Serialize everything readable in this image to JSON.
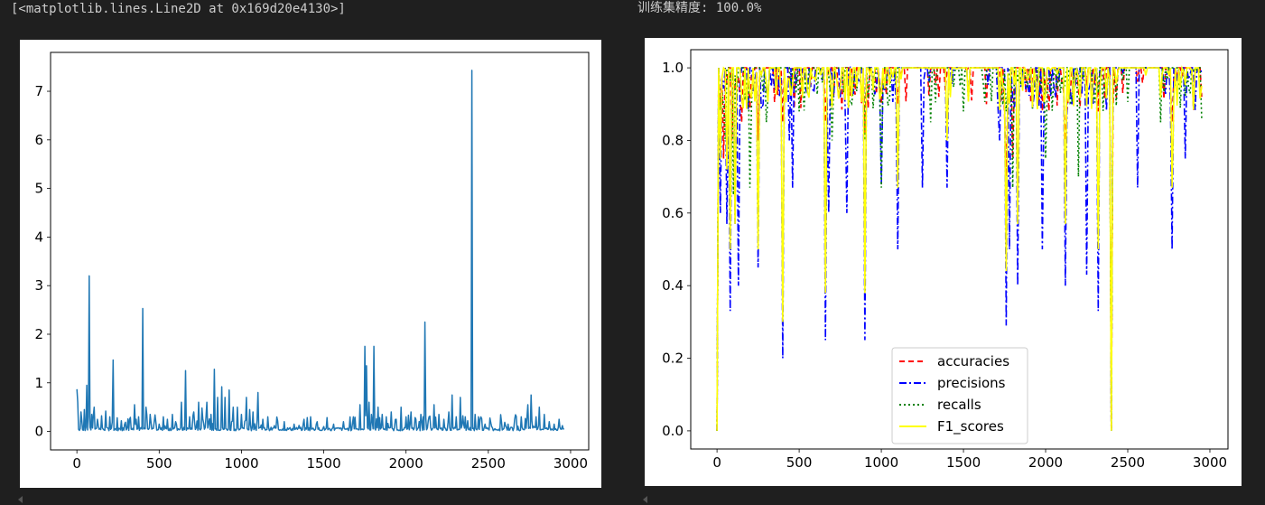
{
  "outputs": {
    "left_text": "[<matplotlib.lines.Line2D at 0x169d20e4130>]",
    "right_text": "训练集精度: 100.0%"
  },
  "chart_data": [
    {
      "type": "line",
      "xlim": [
        -160,
        3110
      ],
      "ylim": [
        -0.38,
        7.8
      ],
      "xticks": [
        0,
        500,
        1000,
        1500,
        2000,
        2500,
        3000
      ],
      "yticks": [
        0,
        1,
        2,
        3,
        4,
        5,
        6,
        7
      ],
      "color": "#1f77b4",
      "grid": false,
      "baseline": 0.05,
      "spikes": [
        [
          0,
          0.87
        ],
        [
          5,
          0.6
        ],
        [
          25,
          0.4
        ],
        [
          45,
          0.45
        ],
        [
          60,
          0.95
        ],
        [
          70,
          0.3
        ],
        [
          75,
          3.2
        ],
        [
          90,
          0.35
        ],
        [
          105,
          0.5
        ],
        [
          125,
          0.25
        ],
        [
          150,
          0.32
        ],
        [
          175,
          0.42
        ],
        [
          200,
          0.3
        ],
        [
          220,
          1.47
        ],
        [
          245,
          0.28
        ],
        [
          270,
          0.22
        ],
        [
          290,
          0.15
        ],
        [
          320,
          0.25
        ],
        [
          350,
          0.55
        ],
        [
          375,
          0.3
        ],
        [
          400,
          2.53
        ],
        [
          420,
          0.5
        ],
        [
          445,
          0.35
        ],
        [
          470,
          0.2
        ],
        [
          500,
          0.15
        ],
        [
          525,
          0.3
        ],
        [
          550,
          0.25
        ],
        [
          580,
          0.35
        ],
        [
          600,
          0.2
        ],
        [
          635,
          0.6
        ],
        [
          660,
          1.25
        ],
        [
          685,
          0.3
        ],
        [
          710,
          0.4
        ],
        [
          740,
          0.6
        ],
        [
          760,
          0.48
        ],
        [
          790,
          0.6
        ],
        [
          815,
          0.35
        ],
        [
          835,
          1.28
        ],
        [
          855,
          0.7
        ],
        [
          880,
          0.92
        ],
        [
          900,
          0.7
        ],
        [
          925,
          0.85
        ],
        [
          950,
          0.5
        ],
        [
          975,
          0.5
        ],
        [
          1000,
          0.35
        ],
        [
          1030,
          0.7
        ],
        [
          1050,
          0.45
        ],
        [
          1070,
          0.4
        ],
        [
          1100,
          0.8
        ],
        [
          1130,
          0.25
        ],
        [
          1160,
          0.3
        ],
        [
          1200,
          0.12
        ],
        [
          1260,
          0.2
        ],
        [
          1320,
          0.15
        ],
        [
          1380,
          0.25
        ],
        [
          1420,
          0.3
        ],
        [
          1460,
          0.2
        ],
        [
          1500,
          0.1
        ],
        [
          1560,
          0.15
        ],
        [
          1620,
          0.2
        ],
        [
          1680,
          0.3
        ],
        [
          1720,
          0.55
        ],
        [
          1750,
          1.75
        ],
        [
          1760,
          1.35
        ],
        [
          1775,
          0.6
        ],
        [
          1790,
          0.35
        ],
        [
          1805,
          1.75
        ],
        [
          1830,
          0.5
        ],
        [
          1855,
          0.35
        ],
        [
          1880,
          0.3
        ],
        [
          1910,
          0.4
        ],
        [
          1940,
          0.25
        ],
        [
          1970,
          0.5
        ],
        [
          2000,
          0.3
        ],
        [
          2030,
          0.4
        ],
        [
          2060,
          0.25
        ],
        [
          2090,
          0.35
        ],
        [
          2115,
          2.25
        ],
        [
          2140,
          0.3
        ],
        [
          2170,
          0.55
        ],
        [
          2200,
          0.35
        ],
        [
          2230,
          0.25
        ],
        [
          2260,
          0.4
        ],
        [
          2280,
          0.75
        ],
        [
          2305,
          0.3
        ],
        [
          2330,
          0.7
        ],
        [
          2360,
          0.3
        ],
        [
          2400,
          7.43
        ],
        [
          2420,
          0.35
        ],
        [
          2450,
          0.25
        ],
        [
          2480,
          0.15
        ],
        [
          2520,
          0.1
        ],
        [
          2580,
          0.2
        ],
        [
          2620,
          0.15
        ],
        [
          2660,
          0.25
        ],
        [
          2700,
          0.3
        ],
        [
          2740,
          0.55
        ],
        [
          2760,
          0.75
        ],
        [
          2790,
          0.3
        ],
        [
          2810,
          0.5
        ],
        [
          2840,
          0.35
        ],
        [
          2870,
          0.2
        ],
        [
          2900,
          0.15
        ],
        [
          2930,
          0.25
        ],
        [
          2950,
          0.12
        ]
      ]
    },
    {
      "type": "line",
      "xlim": [
        -160,
        3110
      ],
      "ylim": [
        -0.05,
        1.05
      ],
      "xticks": [
        0,
        500,
        1000,
        1500,
        2000,
        2500,
        3000
      ],
      "yticks": [
        0.0,
        0.2,
        0.4,
        0.6,
        0.8,
        1.0
      ],
      "grid": false,
      "legend_placement": "lower-center",
      "series": [
        {
          "name": "accuracies",
          "color": "#ff0000",
          "dash": "6,4",
          "dips": [
            [
              0,
              0.0
            ],
            [
              40,
              0.75
            ],
            [
              90,
              0.8
            ],
            [
              150,
              0.85
            ],
            [
              250,
              0.8
            ],
            [
              400,
              0.85
            ],
            [
              660,
              0.85
            ],
            [
              900,
              0.82
            ],
            [
              1100,
              0.9
            ],
            [
              1350,
              0.92
            ],
            [
              1640,
              0.9
            ],
            [
              1760,
              0.7
            ],
            [
              1800,
              0.75
            ],
            [
              1980,
              0.88
            ],
            [
              2120,
              0.8
            ],
            [
              2320,
              0.88
            ],
            [
              2400,
              0.0
            ],
            [
              2770,
              0.85
            ],
            [
              2950,
              0.92
            ]
          ]
        },
        {
          "name": "precisions",
          "color": "#0000ff",
          "dash": "8,3,2,3",
          "dips": [
            [
              0,
              0.0
            ],
            [
              20,
              0.6
            ],
            [
              55,
              0.57
            ],
            [
              75,
              0.33
            ],
            [
              110,
              0.57
            ],
            [
              125,
              0.4
            ],
            [
              250,
              0.45
            ],
            [
              400,
              0.2
            ],
            [
              440,
              0.8
            ],
            [
              460,
              0.67
            ],
            [
              660,
              0.25
            ],
            [
              680,
              0.6
            ],
            [
              790,
              0.6
            ],
            [
              900,
              0.25
            ],
            [
              1000,
              0.68
            ],
            [
              1100,
              0.5
            ],
            [
              1250,
              0.67
            ],
            [
              1400,
              0.67
            ],
            [
              1720,
              0.8
            ],
            [
              1760,
              0.29
            ],
            [
              1780,
              0.5
            ],
            [
              1830,
              0.4
            ],
            [
              1980,
              0.5
            ],
            [
              2120,
              0.4
            ],
            [
              2250,
              0.43
            ],
            [
              2320,
              0.33
            ],
            [
              2400,
              0.0
            ],
            [
              2560,
              0.67
            ],
            [
              2770,
              0.5
            ],
            [
              2850,
              0.75
            ]
          ]
        },
        {
          "name": "recalls",
          "color": "#008000",
          "dash": "2,3",
          "dips": [
            [
              0,
              0.0
            ],
            [
              50,
              0.8
            ],
            [
              100,
              0.65
            ],
            [
              200,
              0.67
            ],
            [
              300,
              0.85
            ],
            [
              500,
              0.88
            ],
            [
              700,
              0.8
            ],
            [
              900,
              0.8
            ],
            [
              1000,
              0.67
            ],
            [
              1300,
              0.85
            ],
            [
              1500,
              0.88
            ],
            [
              1800,
              0.67
            ],
            [
              2000,
              0.75
            ],
            [
              2200,
              0.7
            ],
            [
              2400,
              0.0
            ],
            [
              2700,
              0.85
            ],
            [
              2950,
              0.86
            ]
          ]
        },
        {
          "name": "F1_scores",
          "color": "#ffff00",
          "dash": "",
          "dips": [
            [
              0,
              0.0
            ],
            [
              20,
              0.75
            ],
            [
              55,
              0.72
            ],
            [
              75,
              0.5
            ],
            [
              110,
              0.57
            ],
            [
              250,
              0.5
            ],
            [
              400,
              0.3
            ],
            [
              660,
              0.38
            ],
            [
              900,
              0.38
            ],
            [
              1100,
              0.67
            ],
            [
              1400,
              0.8
            ],
            [
              1760,
              0.44
            ],
            [
              1830,
              0.57
            ],
            [
              2120,
              0.57
            ],
            [
              2320,
              0.5
            ],
            [
              2400,
              0.0
            ],
            [
              2770,
              0.67
            ],
            [
              2950,
              0.95
            ]
          ]
        }
      ]
    }
  ]
}
